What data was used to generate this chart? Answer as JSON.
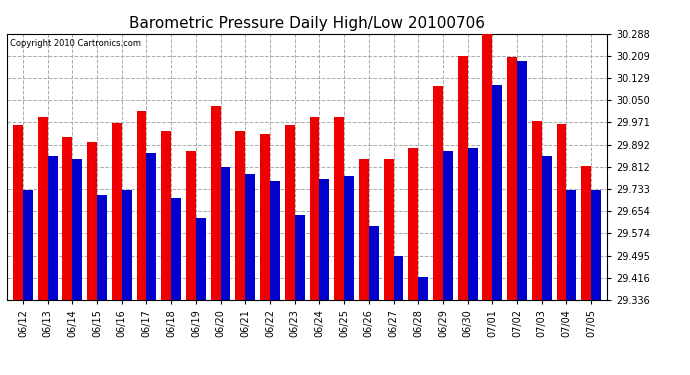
{
  "title": "Barometric Pressure Daily High/Low 20100706",
  "copyright": "Copyright 2010 Cartronics.com",
  "categories": [
    "06/12",
    "06/13",
    "06/14",
    "06/15",
    "06/16",
    "06/17",
    "06/18",
    "06/19",
    "06/20",
    "06/21",
    "06/22",
    "06/23",
    "06/24",
    "06/25",
    "06/26",
    "06/27",
    "06/28",
    "06/29",
    "06/30",
    "07/01",
    "07/02",
    "07/03",
    "07/04",
    "07/05"
  ],
  "highs": [
    29.96,
    29.99,
    29.92,
    29.9,
    29.97,
    30.01,
    29.94,
    29.87,
    30.03,
    29.94,
    29.93,
    29.96,
    29.99,
    29.99,
    29.84,
    29.84,
    29.88,
    30.1,
    30.21,
    30.29,
    30.205,
    29.975,
    29.965,
    29.815
  ],
  "lows": [
    29.73,
    29.85,
    29.84,
    29.71,
    29.73,
    29.86,
    29.7,
    29.63,
    29.81,
    29.785,
    29.76,
    29.64,
    29.77,
    29.78,
    29.6,
    29.495,
    29.42,
    29.87,
    29.88,
    30.105,
    30.19,
    29.85,
    29.73,
    29.73
  ],
  "high_color": "#ee0000",
  "low_color": "#0000cc",
  "bg_color": "#ffffff",
  "grid_color": "#aaaaaa",
  "title_fontsize": 11,
  "ymin": 29.336,
  "ymax": 30.288,
  "yticks": [
    29.336,
    29.416,
    29.495,
    29.574,
    29.654,
    29.733,
    29.812,
    29.892,
    29.971,
    30.05,
    30.129,
    30.209,
    30.288
  ]
}
